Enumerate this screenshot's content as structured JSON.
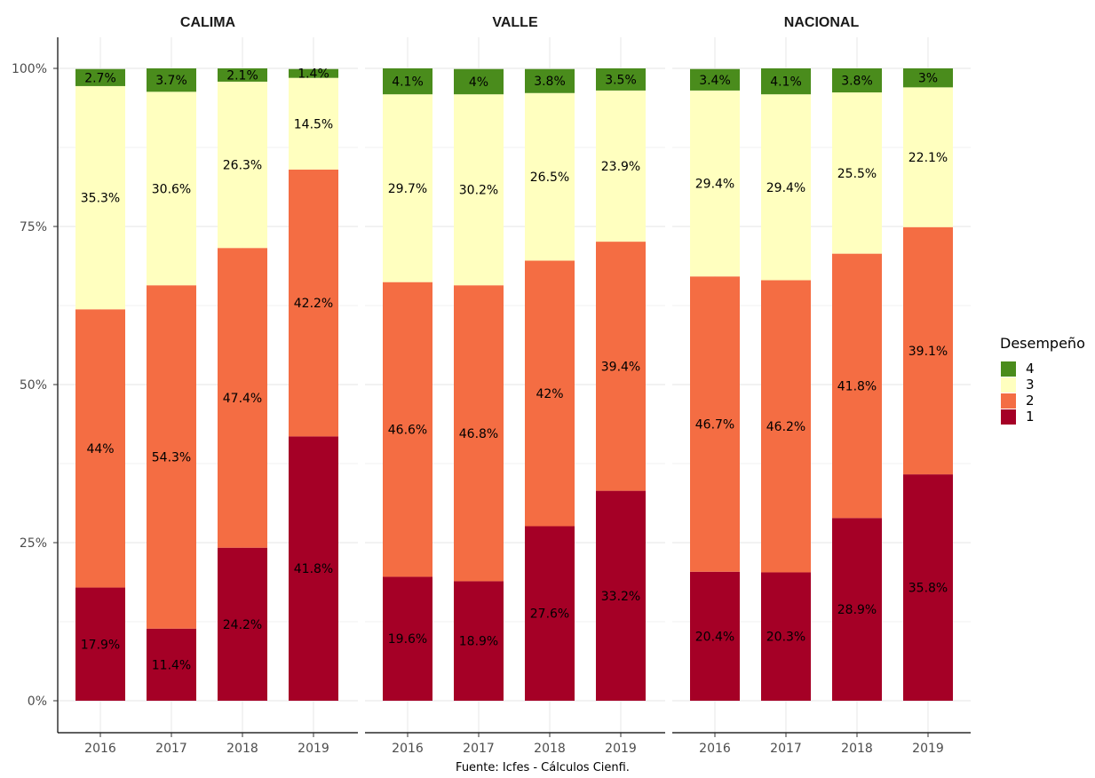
{
  "chart_data": {
    "type": "bar",
    "stacked": true,
    "ylim": [
      0,
      100
    ],
    "yticks": [
      "0%",
      "25%",
      "50%",
      "75%",
      "100%"
    ],
    "ytick_values": [
      0,
      25,
      50,
      75,
      100
    ],
    "categories": [
      "2016",
      "2017",
      "2018",
      "2019"
    ],
    "legend": {
      "title": "Desempeño",
      "position": "right",
      "items": [
        {
          "label": "4",
          "color": "#4a8c1c"
        },
        {
          "label": "3",
          "color": "#ffffbf"
        },
        {
          "label": "2",
          "color": "#f46d43"
        },
        {
          "label": "1",
          "color": "#a50026"
        }
      ]
    },
    "level_colors": {
      "1": "#a50026",
      "2": "#f46d43",
      "3": "#ffffbf",
      "4": "#4a8c1c"
    },
    "caption": "Fuente: Icfes - Cálculos Cienfi.",
    "panels": [
      {
        "title": "CALIMA",
        "bars": [
          {
            "year": "2016",
            "values": {
              "1": 17.9,
              "2": 44,
              "3": 35.3,
              "4": 2.7
            },
            "labels": {
              "1": "17.9%",
              "2": "44%",
              "3": "35.3%",
              "4": "2.7%"
            }
          },
          {
            "year": "2017",
            "values": {
              "1": 11.4,
              "2": 54.3,
              "3": 30.6,
              "4": 3.7
            },
            "labels": {
              "1": "11.4%",
              "2": "54.3%",
              "3": "30.6%",
              "4": "3.7%"
            }
          },
          {
            "year": "2018",
            "values": {
              "1": 24.2,
              "2": 47.4,
              "3": 26.3,
              "4": 2.1
            },
            "labels": {
              "1": "24.2%",
              "2": "47.4%",
              "3": "26.3%",
              "4": "2.1%"
            }
          },
          {
            "year": "2019",
            "values": {
              "1": 41.8,
              "2": 42.2,
              "3": 14.5,
              "4": 1.4
            },
            "labels": {
              "1": "41.8%",
              "2": "42.2%",
              "3": "14.5%",
              "4": "1.4%"
            }
          }
        ]
      },
      {
        "title": "VALLE",
        "bars": [
          {
            "year": "2016",
            "values": {
              "1": 19.6,
              "2": 46.6,
              "3": 29.7,
              "4": 4.1
            },
            "labels": {
              "1": "19.6%",
              "2": "46.6%",
              "3": "29.7%",
              "4": "4.1%"
            }
          },
          {
            "year": "2017",
            "values": {
              "1": 18.9,
              "2": 46.8,
              "3": 30.2,
              "4": 4
            },
            "labels": {
              "1": "18.9%",
              "2": "46.8%",
              "3": "30.2%",
              "4": "4%"
            }
          },
          {
            "year": "2018",
            "values": {
              "1": 27.6,
              "2": 42,
              "3": 26.5,
              "4": 3.8
            },
            "labels": {
              "1": "27.6%",
              "2": "42%",
              "3": "26.5%",
              "4": "3.8%"
            }
          },
          {
            "year": "2019",
            "values": {
              "1": 33.2,
              "2": 39.4,
              "3": 23.9,
              "4": 3.5
            },
            "labels": {
              "1": "33.2%",
              "2": "39.4%",
              "3": "23.9%",
              "4": "3.5%"
            }
          }
        ]
      },
      {
        "title": "NACIONAL",
        "bars": [
          {
            "year": "2016",
            "values": {
              "1": 20.4,
              "2": 46.7,
              "3": 29.4,
              "4": 3.4
            },
            "labels": {
              "1": "20.4%",
              "2": "46.7%",
              "3": "29.4%",
              "4": "3.4%"
            }
          },
          {
            "year": "2017",
            "values": {
              "1": 20.3,
              "2": 46.2,
              "3": 29.4,
              "4": 4.1
            },
            "labels": {
              "1": "20.3%",
              "2": "46.2%",
              "3": "29.4%",
              "4": "4.1%"
            }
          },
          {
            "year": "2018",
            "values": {
              "1": 28.9,
              "2": 41.8,
              "3": 25.5,
              "4": 3.8
            },
            "labels": {
              "1": "28.9%",
              "2": "41.8%",
              "3": "25.5%",
              "4": "3.8%"
            }
          },
          {
            "year": "2019",
            "values": {
              "1": 35.8,
              "2": 39.1,
              "3": 22.1,
              "4": 3
            },
            "labels": {
              "1": "35.8%",
              "2": "39.1%",
              "3": "22.1%",
              "4": "3%"
            }
          }
        ]
      }
    ]
  }
}
